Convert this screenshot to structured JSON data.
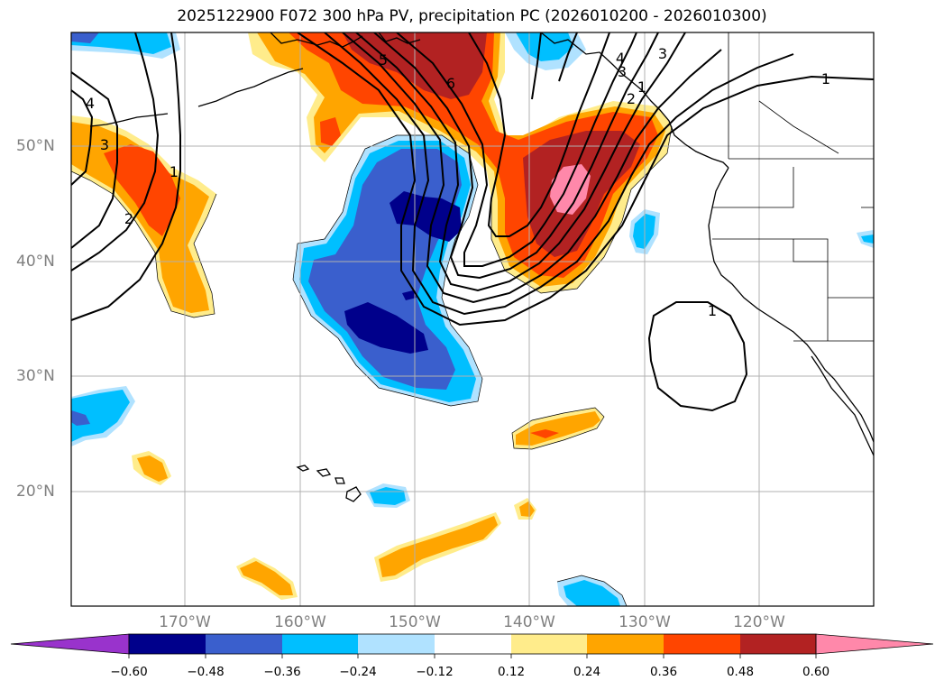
{
  "title": "2025122900 F072 300 hPa PV, precipitation PC (2026010200 - 2026010300)",
  "lat_labels": [
    "50°N",
    "40°N",
    "30°N",
    "20°N"
  ],
  "lon_labels": [
    "170°W",
    "160°W",
    "150°W",
    "140°W",
    "130°W",
    "120°W"
  ],
  "contour_labels": [
    "1",
    "2",
    "3",
    "4",
    "3",
    "1",
    "1",
    "2",
    "3",
    "4",
    "6",
    "5",
    "1"
  ],
  "colorbar": {
    "ticks": [
      "−0.60",
      "−0.48",
      "−0.36",
      "−0.24",
      "−0.12",
      "0.12",
      "0.24",
      "0.36",
      "0.48",
      "0.60"
    ],
    "colors": [
      "#9933cc",
      "#00008b",
      "#3a5fcd",
      "#00bfff",
      "#b0e2ff",
      "#ffffff",
      "#ffec8b",
      "#ffa500",
      "#ff4500",
      "#b22222",
      "#ff88aa"
    ]
  },
  "colors": {
    "coast": "#000000",
    "grid": "#b0b0b0",
    "contour": "#000000"
  }
}
